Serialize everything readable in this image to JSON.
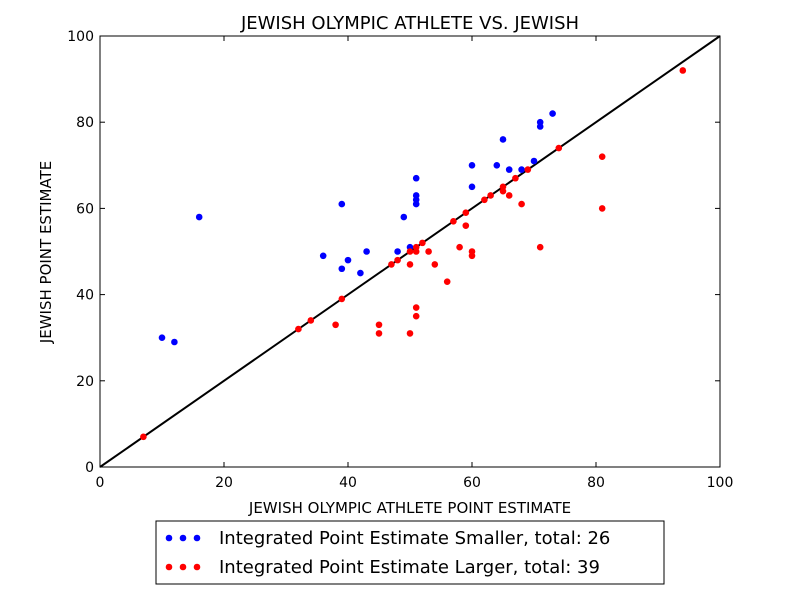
{
  "chart_data": {
    "type": "scatter",
    "title": "JEWISH OLYMPIC ATHLETE VS. JEWISH",
    "xlabel": "JEWISH OLYMPIC ATHLETE POINT ESTIMATE",
    "ylabel": "JEWISH POINT ESTIMATE",
    "xlim": [
      0,
      100
    ],
    "ylim": [
      0,
      100
    ],
    "xticks": [
      "0",
      "20",
      "40",
      "60",
      "80",
      "100"
    ],
    "yticks": [
      "0",
      "20",
      "40",
      "60",
      "80",
      "100"
    ],
    "grid": false,
    "legend_position": "below",
    "reference_line": {
      "x": [
        0,
        100
      ],
      "y": [
        0,
        100
      ],
      "color": "#000000"
    },
    "series": [
      {
        "name": "Integrated Point Estimate Smaller, total: 26",
        "color": "#0000ff",
        "points": [
          [
            10,
            30
          ],
          [
            12,
            29
          ],
          [
            16,
            58
          ],
          [
            36,
            49
          ],
          [
            39,
            61
          ],
          [
            39,
            46
          ],
          [
            40,
            48
          ],
          [
            42,
            45
          ],
          [
            43,
            50
          ],
          [
            48,
            50
          ],
          [
            49,
            58
          ],
          [
            50,
            51
          ],
          [
            51,
            67
          ],
          [
            51,
            63
          ],
          [
            51,
            62
          ],
          [
            51,
            61
          ],
          [
            60,
            70
          ],
          [
            60,
            65
          ],
          [
            64,
            70
          ],
          [
            65,
            76
          ],
          [
            66,
            69
          ],
          [
            68,
            69
          ],
          [
            70,
            71
          ],
          [
            71,
            80
          ],
          [
            71,
            79
          ],
          [
            73,
            82
          ]
        ]
      },
      {
        "name": "Integrated Point Estimate Larger, total: 39",
        "color": "#ff0000",
        "points": [
          [
            7,
            7
          ],
          [
            32,
            32
          ],
          [
            34,
            34
          ],
          [
            38,
            33
          ],
          [
            39,
            39
          ],
          [
            45,
            33
          ],
          [
            45,
            31
          ],
          [
            47,
            47
          ],
          [
            50,
            50
          ],
          [
            50,
            47
          ],
          [
            50,
            31
          ],
          [
            51,
            51
          ],
          [
            51,
            50
          ],
          [
            51,
            37
          ],
          [
            51,
            35
          ],
          [
            53,
            50
          ],
          [
            54,
            47
          ],
          [
            56,
            43
          ],
          [
            58,
            51
          ],
          [
            59,
            59
          ],
          [
            59,
            56
          ],
          [
            60,
            50
          ],
          [
            60,
            49
          ],
          [
            62,
            62
          ],
          [
            65,
            65
          ],
          [
            65,
            64
          ],
          [
            66,
            63
          ],
          [
            68,
            61
          ],
          [
            71,
            51
          ],
          [
            81,
            72
          ],
          [
            81,
            60
          ],
          [
            94,
            92
          ],
          [
            48,
            48
          ],
          [
            52,
            52
          ],
          [
            57,
            57
          ],
          [
            63,
            63
          ],
          [
            67,
            67
          ],
          [
            69,
            69
          ],
          [
            74,
            74
          ]
        ]
      }
    ]
  }
}
